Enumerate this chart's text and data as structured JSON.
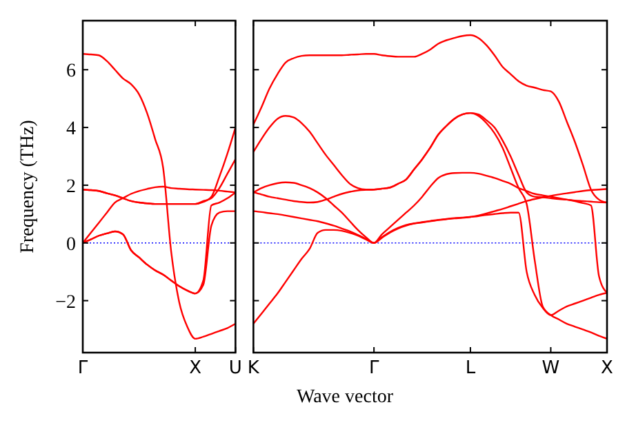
{
  "chart_data": [
    {
      "type": "line",
      "ylabel": "Frequency (THz)",
      "ylim": [
        -3.8,
        7.7
      ],
      "categories": [
        "Γ",
        null,
        null,
        null,
        null,
        null,
        null,
        null,
        null,
        null,
        null,
        null,
        null,
        null,
        "X",
        null,
        null,
        null,
        null,
        "U"
      ],
      "yticks": [
        {
          "value": -2,
          "label": "−2"
        },
        0,
        2,
        4,
        6
      ],
      "ref_lines": [
        {
          "axis": "y",
          "value": 0,
          "color": "#0000ff",
          "line_style": "dotted"
        }
      ],
      "series": [
        {
          "color": "#ff0000",
          "values": [
            6.55,
            6.53,
            6.5,
            6.3,
            6.0,
            5.7,
            5.5,
            5.15,
            4.5,
            3.6,
            2.6,
            -0.3,
            -2.05,
            -2.9,
            -3.32,
            -3.25,
            -3.15,
            -3.05,
            -2.95,
            -2.8
          ]
        },
        {
          "color": "#ff0000",
          "values": [
            0,
            0.35,
            0.7,
            1.05,
            1.4,
            1.55,
            1.7,
            1.8,
            1.87,
            1.93,
            1.95,
            1.9,
            1.88,
            1.86,
            1.85,
            1.84,
            1.83,
            1.81,
            1.78,
            1.75
          ]
        },
        {
          "color": "#ff0000",
          "values": [
            1.85,
            1.83,
            1.8,
            1.72,
            1.65,
            1.55,
            1.45,
            1.4,
            1.37,
            1.35,
            1.35,
            1.35,
            1.35,
            1.35,
            1.35,
            1.42,
            1.6,
            2.3,
            3.1,
            4.0
          ]
        },
        {
          "color": "#ff0000",
          "values": [
            1.85,
            1.83,
            1.8,
            1.72,
            1.65,
            1.55,
            1.45,
            1.4,
            1.37,
            1.35,
            1.35,
            1.35,
            1.35,
            1.35,
            1.35,
            1.45,
            1.55,
            1.9,
            2.4,
            2.9
          ]
        },
        {
          "color": "#ff0000",
          "values": [
            0,
            0.12,
            0.25,
            0.33,
            0.4,
            0.3,
            -0.25,
            -0.5,
            -0.75,
            -0.95,
            -1.1,
            -1.3,
            -1.5,
            -1.65,
            -1.75,
            -1.45,
            0.6,
            1.05,
            1.1,
            1.1
          ]
        },
        {
          "color": "#ff0000",
          "values": [
            0,
            0.12,
            0.25,
            0.33,
            0.4,
            0.3,
            -0.25,
            -0.5,
            -0.75,
            -0.95,
            -1.1,
            -1.3,
            -1.5,
            -1.65,
            -1.75,
            -1.3,
            1.3,
            1.4,
            1.55,
            1.75
          ]
        }
      ]
    },
    {
      "type": "line",
      "xlabel": "Wave vector",
      "tick_labels": "x",
      "ylim": [
        -3.8,
        7.7
      ],
      "categories": [
        "K",
        null,
        null,
        null,
        null,
        null,
        null,
        null,
        null,
        null,
        null,
        null,
        null,
        null,
        null,
        "Γ",
        null,
        null,
        null,
        null,
        null,
        null,
        null,
        null,
        null,
        null,
        null,
        "L",
        null,
        null,
        null,
        null,
        null,
        null,
        null,
        null,
        null,
        "W",
        null,
        null,
        null,
        null,
        null,
        null,
        "X"
      ],
      "yticks": [
        -2,
        0,
        2,
        4,
        6
      ],
      "ref_lines": [
        {
          "axis": "y",
          "value": 0,
          "color": "#0000ff",
          "line_style": "dotted"
        }
      ],
      "series": [
        {
          "color": "#ff0000",
          "values": [
            4.1,
            4.7,
            5.35,
            5.85,
            6.25,
            6.4,
            6.48,
            6.5,
            6.5,
            6.5,
            6.5,
            6.5,
            6.52,
            6.53,
            6.55,
            6.55,
            6.5,
            6.47,
            6.45,
            6.45,
            6.45,
            6.55,
            6.7,
            6.9,
            7.02,
            7.1,
            7.17,
            7.2,
            7.1,
            6.85,
            6.5,
            6.1,
            5.85,
            5.6,
            5.45,
            5.38,
            5.3,
            5.25,
            4.9,
            4.2,
            3.5,
            2.7,
            1.85,
            1.5,
            1.4
          ]
        },
        {
          "color": "#ff0000",
          "values": [
            3.15,
            3.6,
            4.0,
            4.3,
            4.4,
            4.35,
            4.15,
            3.85,
            3.45,
            3.05,
            2.7,
            2.35,
            2.05,
            1.9,
            1.85,
            1.85,
            1.88,
            1.92,
            2.05,
            2.2,
            2.55,
            2.9,
            3.3,
            3.75,
            4.05,
            4.3,
            4.45,
            4.5,
            4.45,
            4.25,
            4.0,
            3.55,
            3.0,
            2.35,
            1.75,
            1.6,
            1.58,
            1.55,
            1.52,
            1.5,
            1.47,
            1.45,
            1.43,
            1.41,
            1.4
          ]
        },
        {
          "color": "#ff0000",
          "values": [
            1.75,
            1.68,
            1.6,
            1.55,
            1.5,
            1.45,
            1.42,
            1.4,
            1.42,
            1.5,
            1.6,
            1.7,
            1.77,
            1.82,
            1.84,
            1.85,
            1.88,
            1.92,
            2.05,
            2.2,
            2.55,
            2.9,
            3.3,
            3.75,
            4.05,
            4.3,
            4.45,
            4.5,
            4.4,
            4.15,
            3.8,
            3.3,
            2.6,
            1.9,
            1.35,
            -0.6,
            -2.2,
            -2.5,
            -2.65,
            -2.8,
            -2.9,
            -3.0,
            -3.1,
            -3.22,
            -3.32
          ]
        },
        {
          "color": "#ff0000",
          "values": [
            1.75,
            1.9,
            2.0,
            2.07,
            2.1,
            2.08,
            2.0,
            1.9,
            1.75,
            1.55,
            1.3,
            1.05,
            0.75,
            0.45,
            0.2,
            0,
            0.3,
            0.55,
            0.8,
            1.05,
            1.3,
            1.6,
            1.95,
            2.25,
            2.38,
            2.42,
            2.43,
            2.43,
            2.4,
            2.33,
            2.25,
            2.15,
            2.05,
            1.9,
            1.8,
            1.7,
            1.65,
            1.6,
            1.55,
            1.5,
            1.45,
            1.38,
            1.3,
            -1.15,
            -1.73
          ]
        },
        {
          "color": "#ff0000",
          "values": [
            1.1,
            1.07,
            1.03,
            1.0,
            0.95,
            0.9,
            0.85,
            0.8,
            0.75,
            0.68,
            0.6,
            0.5,
            0.4,
            0.28,
            0.14,
            0,
            0.2,
            0.38,
            0.52,
            0.62,
            0.68,
            0.72,
            0.76,
            0.8,
            0.83,
            0.86,
            0.88,
            0.9,
            0.95,
            1.02,
            1.1,
            1.18,
            1.27,
            1.36,
            1.45,
            1.52,
            1.58,
            1.63,
            1.68,
            1.72,
            1.76,
            1.8,
            1.83,
            1.85,
            1.87
          ]
        },
        {
          "color": "#ff0000",
          "values": [
            -2.8,
            -2.45,
            -2.1,
            -1.75,
            -1.35,
            -0.95,
            -0.55,
            -0.2,
            0.35,
            0.45,
            0.45,
            0.42,
            0.35,
            0.25,
            0.12,
            0,
            0.18,
            0.36,
            0.5,
            0.6,
            0.67,
            0.71,
            0.75,
            0.79,
            0.82,
            0.85,
            0.87,
            0.9,
            0.93,
            0.97,
            1.0,
            1.03,
            1.05,
            1.05,
            -1.0,
            -1.8,
            -2.25,
            -2.5,
            -2.35,
            -2.2,
            -2.1,
            -2.0,
            -1.9,
            -1.8,
            -1.73
          ]
        }
      ]
    }
  ]
}
